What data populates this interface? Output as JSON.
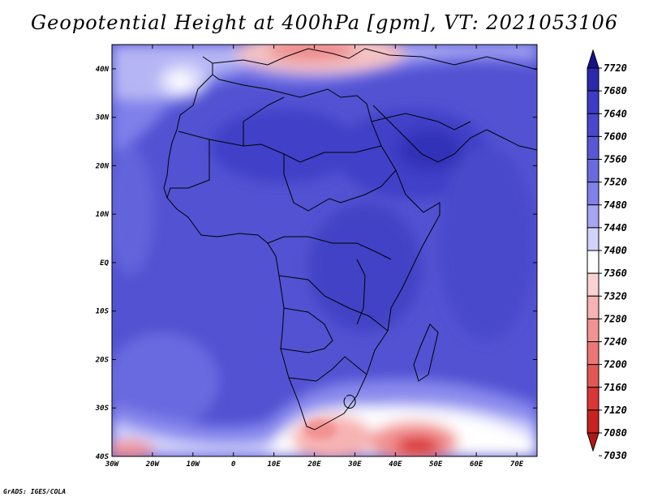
{
  "title": "Geopotential Height at 400hPa [gpm], VT: 2021053106",
  "credit": "GrADS: IGES/COLA",
  "map": {
    "lat_labels": [
      "40N",
      "30N",
      "20N",
      "10N",
      "EQ",
      "10S",
      "20S",
      "30S",
      "40S"
    ],
    "lon_labels": [
      "30W",
      "20W",
      "10W",
      "0",
      "10E",
      "20E",
      "30E",
      "40E",
      "50E",
      "60E",
      "70E"
    ],
    "lon_range": [
      -30,
      75
    ],
    "lat_range": [
      -40,
      45
    ]
  },
  "colorbar": {
    "levels": [
      "7720",
      "7680",
      "7640",
      "7600",
      "7560",
      "7520",
      "7480",
      "7440",
      "7400",
      "7360",
      "7320",
      "7280",
      "7240",
      "7200",
      "7160",
      "7120",
      "7080",
      "7030"
    ],
    "colors": [
      "#17118c",
      "#2a2aab",
      "#3c3cc6",
      "#4848cc",
      "#5858d6",
      "#6a6ae0",
      "#8080ea",
      "#a5a5f2",
      "#d2d2fb",
      "#ffffff",
      "#fbd2d2",
      "#f7b2b2",
      "#f29393",
      "#ec7676",
      "#e45656",
      "#da3636",
      "#c92222",
      "#b21818"
    ]
  }
}
